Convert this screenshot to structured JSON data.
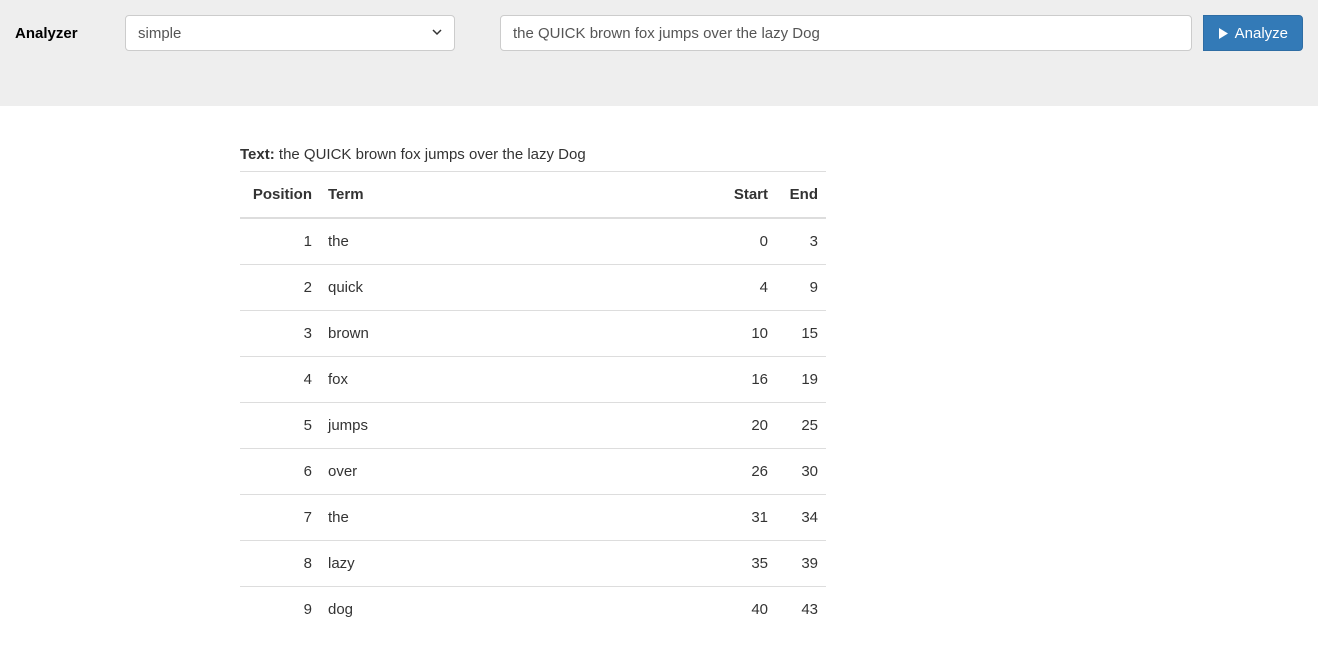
{
  "toolbar": {
    "label": "Analyzer",
    "selected_analyzer": "simple",
    "input_text": "the QUICK brown fox jumps over the lazy Dog",
    "analyze_label": "Analyze"
  },
  "result": {
    "text_label": "Text:",
    "text_value": "the QUICK brown fox jumps over the lazy Dog",
    "columns": {
      "position": "Position",
      "term": "Term",
      "start": "Start",
      "end": "End"
    },
    "rows": [
      {
        "position": 1,
        "term": "the",
        "start": 0,
        "end": 3
      },
      {
        "position": 2,
        "term": "quick",
        "start": 4,
        "end": 9
      },
      {
        "position": 3,
        "term": "brown",
        "start": 10,
        "end": 15
      },
      {
        "position": 4,
        "term": "fox",
        "start": 16,
        "end": 19
      },
      {
        "position": 5,
        "term": "jumps",
        "start": 20,
        "end": 25
      },
      {
        "position": 6,
        "term": "over",
        "start": 26,
        "end": 30
      },
      {
        "position": 7,
        "term": "the",
        "start": 31,
        "end": 34
      },
      {
        "position": 8,
        "term": "lazy",
        "start": 35,
        "end": 39
      },
      {
        "position": 9,
        "term": "dog",
        "start": 40,
        "end": 43
      }
    ]
  },
  "colors": {
    "toolbar_bg": "#eeeeee",
    "button_bg": "#337ab7",
    "border": "#dddddd"
  }
}
